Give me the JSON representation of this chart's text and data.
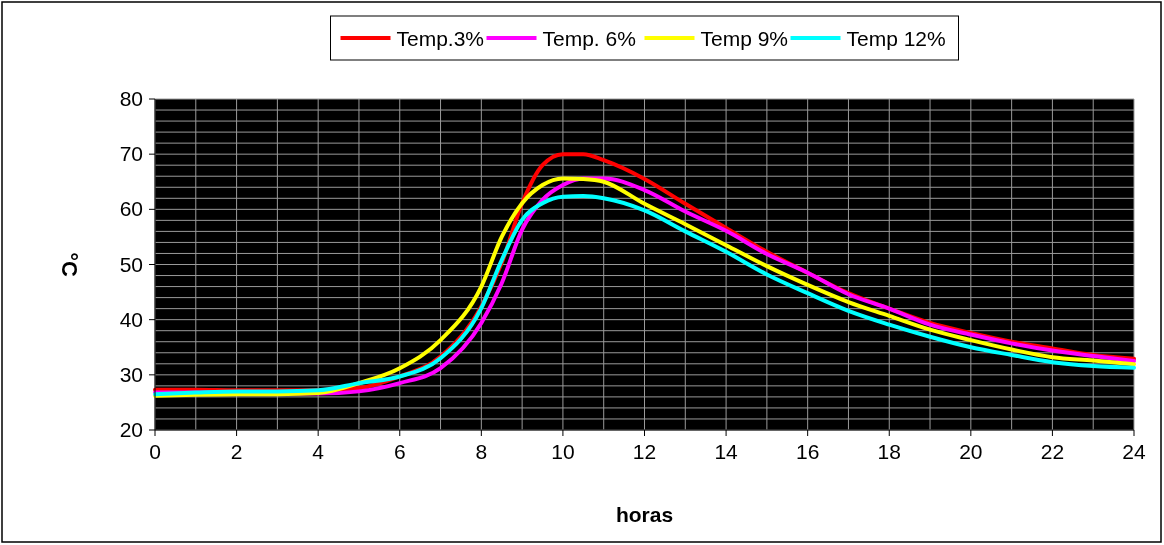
{
  "chart_data": {
    "type": "line",
    "xlabel": "horas",
    "ylabel": "°C",
    "x": [
      0,
      1,
      2,
      3,
      4,
      5,
      6,
      7,
      8,
      8.5,
      9,
      9.5,
      10,
      10.5,
      11,
      12,
      13,
      14,
      15,
      16,
      17,
      18,
      19,
      20,
      21,
      22,
      23,
      24
    ],
    "series": [
      {
        "name": "Temp.3%",
        "color": "#ff0000",
        "values": [
          27.3,
          27.3,
          27.2,
          27.2,
          27.2,
          27.6,
          29.7,
          33.3,
          42.4,
          50.3,
          61.1,
          68.0,
          70.0,
          70.0,
          68.9,
          65.5,
          61.0,
          56.6,
          52.3,
          48.5,
          44.8,
          42.0,
          39.4,
          37.6,
          36.0,
          34.8,
          33.6,
          32.9
        ]
      },
      {
        "name": "Temp. 6%",
        "color": "#ff00ff",
        "values": [
          26.8,
          26.8,
          26.8,
          26.7,
          26.6,
          27.0,
          28.5,
          31.2,
          39.4,
          46.6,
          56.3,
          61.7,
          64.4,
          65.6,
          65.6,
          63.5,
          59.6,
          56.1,
          51.9,
          48.5,
          44.6,
          42.0,
          39.1,
          37.3,
          35.7,
          34.4,
          33.4,
          32.5
        ]
      },
      {
        "name": "Temp 9%",
        "color": "#ffff00",
        "values": [
          26.2,
          26.4,
          26.5,
          26.5,
          26.7,
          28.5,
          31.2,
          36.3,
          46.0,
          55.0,
          61.1,
          64.4,
          65.6,
          65.5,
          65.0,
          61.0,
          57.3,
          53.5,
          49.7,
          46.3,
          43.2,
          40.7,
          38.2,
          36.3,
          34.6,
          33.2,
          32.6,
          31.9
        ]
      },
      {
        "name": "Temp 12%",
        "color": "#00ffff",
        "values": [
          26.5,
          26.8,
          27.0,
          27.0,
          27.2,
          28.5,
          29.7,
          33.0,
          42.1,
          50.8,
          58.1,
          61.1,
          62.3,
          62.4,
          62.0,
          59.8,
          56.0,
          52.3,
          48.2,
          44.8,
          41.6,
          39.1,
          36.9,
          35.0,
          33.6,
          32.3,
          31.6,
          31.3
        ]
      }
    ],
    "xlim": [
      0,
      24
    ],
    "ylim": [
      20,
      80
    ],
    "xticks": [
      0,
      {
        "value": 1,
        "label": null
      },
      2,
      {
        "value": 3,
        "label": null
      },
      4,
      {
        "value": 5,
        "label": null
      },
      6,
      {
        "value": 7,
        "label": null
      },
      8,
      {
        "value": 9,
        "label": null
      },
      10,
      {
        "value": 11,
        "label": null
      },
      12,
      {
        "value": 13,
        "label": null
      },
      14,
      {
        "value": 15,
        "label": null
      },
      16,
      {
        "value": 17,
        "label": null
      },
      18,
      {
        "value": 19,
        "label": null
      },
      20,
      {
        "value": 21,
        "label": null
      },
      22,
      {
        "value": 23,
        "label": null
      },
      24
    ],
    "yticks": [
      20,
      {
        "value": 22,
        "label": null
      },
      {
        "value": 24,
        "label": null
      },
      {
        "value": 26,
        "label": null
      },
      {
        "value": 28,
        "label": null
      },
      30,
      {
        "value": 32,
        "label": null
      },
      {
        "value": 34,
        "label": null
      },
      {
        "value": 36,
        "label": null
      },
      {
        "value": 38,
        "label": null
      },
      40,
      {
        "value": 42,
        "label": null
      },
      {
        "value": 44,
        "label": null
      },
      {
        "value": 46,
        "label": null
      },
      {
        "value": 48,
        "label": null
      },
      50,
      {
        "value": 52,
        "label": null
      },
      {
        "value": 54,
        "label": null
      },
      {
        "value": 56,
        "label": null
      },
      {
        "value": 58,
        "label": null
      },
      60,
      {
        "value": 62,
        "label": null
      },
      {
        "value": 64,
        "label": null
      },
      {
        "value": 66,
        "label": null
      },
      {
        "value": 68,
        "label": null
      },
      70,
      {
        "value": 72,
        "label": null
      },
      {
        "value": 74,
        "label": null
      },
      {
        "value": 76,
        "label": null
      },
      {
        "value": 78,
        "label": null
      },
      80
    ],
    "grid": true,
    "legend": "top",
    "marker": "none",
    "line_style": "solid"
  }
}
